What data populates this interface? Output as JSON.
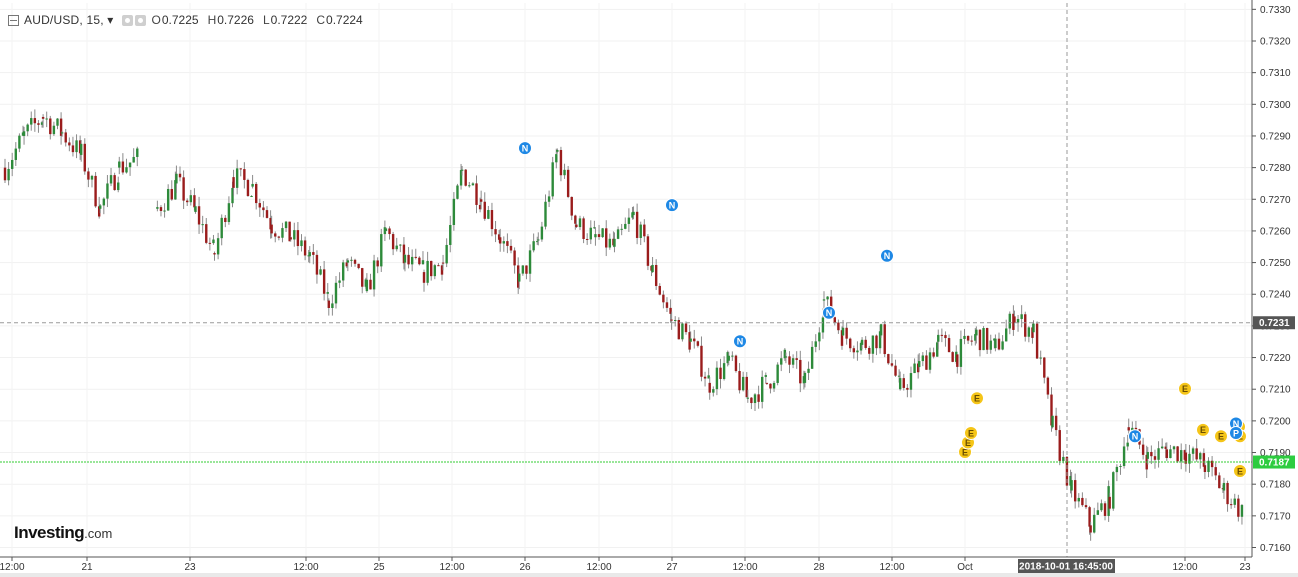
{
  "legend": {
    "symbol": "AUD/USD, 15, ",
    "menu_glyph": "▾",
    "open_label": "O",
    "open": "0.7225",
    "high_label": "H",
    "high": "0.7226",
    "low_label": "L",
    "low": "0.7222",
    "close_label": "C",
    "close": "0.7224"
  },
  "logo": {
    "brand": "Investing",
    "suffix": ".com"
  },
  "crosshair": {
    "price_label": "0.7231",
    "time_label": "2018-10-01 16:45:00"
  },
  "last_price": {
    "label": "0.7187"
  },
  "colors": {
    "up": "#2d8a3a",
    "down": "#9a1c1c",
    "wick": "#8a8a8a",
    "event_n": "#1e88e5",
    "event_e": "#f5c518",
    "last_price_line": "#33cc33"
  },
  "chart_data": {
    "type": "candlestick",
    "title": "AUD/USD, 15",
    "ylim": [
      0.7157,
      0.7332
    ],
    "y_ticks": [
      "0.7330",
      "0.7320",
      "0.7310",
      "0.7300",
      "0.7290",
      "0.7280",
      "0.7270",
      "0.7260",
      "0.7250",
      "0.7240",
      "0.7230",
      "0.7220",
      "0.7210",
      "0.7200",
      "0.7190",
      "0.7180",
      "0.7170",
      "0.7160"
    ],
    "x_ticks": [
      "12:00",
      "21",
      "23",
      "12:00",
      "25",
      "12:00",
      "26",
      "12:00",
      "27",
      "12:00",
      "28",
      "12:00",
      "Oct",
      "12:00",
      "23"
    ],
    "price_path": [
      [
        "21",
        0.728
      ],
      [
        "21",
        0.729
      ],
      [
        "21",
        0.7296
      ],
      [
        "21",
        0.7291
      ],
      [
        "21",
        0.7284
      ],
      [
        "21",
        0.7267
      ],
      [
        "21",
        0.728
      ],
      [
        "21",
        0.7283
      ],
      [
        "23",
        0.7267
      ],
      [
        "23",
        0.7275
      ],
      [
        "23",
        0.7266
      ],
      [
        "23",
        0.7253
      ],
      [
        "23",
        0.7277
      ],
      [
        "23",
        0.7274
      ],
      [
        "23",
        0.7262
      ],
      [
        "23",
        0.7258
      ],
      [
        "23",
        0.7252
      ],
      [
        "25",
        0.7238
      ],
      [
        "25",
        0.725
      ],
      [
        "25",
        0.7241
      ],
      [
        "25",
        0.726
      ],
      [
        "25",
        0.725
      ],
      [
        "25",
        0.7247
      ],
      [
        "25",
        0.725
      ],
      [
        "26",
        0.7279
      ],
      [
        "26",
        0.727
      ],
      [
        "26",
        0.7258
      ],
      [
        "26",
        0.7244
      ],
      [
        "26",
        0.7257
      ],
      [
        "26",
        0.7285
      ],
      [
        "26",
        0.7262
      ],
      [
        "26",
        0.7258
      ],
      [
        "27",
        0.7255
      ],
      [
        "27",
        0.7265
      ],
      [
        "27",
        0.7247
      ],
      [
        "27",
        0.7232
      ],
      [
        "27",
        0.7225
      ],
      [
        "27",
        0.7212
      ],
      [
        "27",
        0.7219
      ],
      [
        "27",
        0.7207
      ],
      [
        "28",
        0.7212
      ],
      [
        "28",
        0.722
      ],
      [
        "28",
        0.7212
      ],
      [
        "28",
        0.7238
      ],
      [
        "28",
        0.7227
      ],
      [
        "28",
        0.7224
      ],
      [
        "28",
        0.7227
      ],
      [
        "Oct",
        0.721
      ],
      [
        "Oct",
        0.7217
      ],
      [
        "Oct",
        0.7225
      ],
      [
        "Oct",
        0.7221
      ],
      [
        "Oct",
        0.7227
      ],
      [
        "Oct",
        0.7223
      ],
      [
        "Oct",
        0.7233
      ],
      [
        "Oct",
        0.7228
      ],
      [
        "Oct",
        0.7198
      ],
      [
        "Oct",
        0.7178
      ],
      [
        "Oct",
        0.7167
      ],
      [
        "Oct",
        0.7176
      ],
      [
        "Oct",
        0.7198
      ],
      [
        "Oct",
        0.7188
      ],
      [
        "Oct",
        0.7191
      ],
      [
        "Oct",
        0.719
      ],
      [
        "Oct",
        0.7186
      ],
      [
        "23",
        0.7178
      ],
      [
        "23",
        0.7171
      ]
    ],
    "events": [
      {
        "letter": "N",
        "x": "26",
        "y": 0.7283
      },
      {
        "letter": "N",
        "x": "27",
        "y": 0.7265
      },
      {
        "letter": "N",
        "x": "27",
        "y": 0.7222
      },
      {
        "letter": "N",
        "x": "28",
        "y": 0.7231
      },
      {
        "letter": "N",
        "x": "28",
        "y": 0.7249
      },
      {
        "letter": "N",
        "x": "Oct",
        "y": 0.7192
      },
      {
        "letter": "E",
        "x": "Oct",
        "y": 0.7187
      },
      {
        "letter": "E",
        "x": "Oct",
        "y": 0.719
      },
      {
        "letter": "E",
        "x": "Oct",
        "y": 0.7193
      },
      {
        "letter": "E",
        "x": "Oct",
        "y": 0.7204
      },
      {
        "letter": "E",
        "x": "12:00",
        "y": 0.7207
      },
      {
        "letter": "E",
        "x": "12:00",
        "y": 0.7194
      },
      {
        "letter": "E",
        "x": "12:00",
        "y": 0.7192
      },
      {
        "letter": "E",
        "x": "12:00",
        "y": 0.7195
      },
      {
        "letter": "N",
        "x": "23",
        "y": 0.7196
      },
      {
        "letter": "E",
        "x": "23",
        "y": 0.7192
      },
      {
        "letter": "P",
        "x": "23",
        "y": 0.7193
      },
      {
        "letter": "E",
        "x": "23",
        "y": 0.7181
      }
    ],
    "crosshair_price": 0.7231,
    "last_price": 0.7187,
    "grid": true
  }
}
